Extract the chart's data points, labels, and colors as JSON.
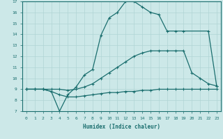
{
  "xlabel": "Humidex (Indice chaleur)",
  "ylabel": "",
  "bg_color": "#cce8e8",
  "grid_color": "#b0d4d4",
  "line_color": "#1a6e6e",
  "xlim": [
    -0.5,
    23.5
  ],
  "ylim": [
    7,
    17
  ],
  "yticks": [
    7,
    8,
    9,
    10,
    11,
    12,
    13,
    14,
    15,
    16,
    17
  ],
  "xticks": [
    0,
    1,
    2,
    3,
    4,
    5,
    6,
    7,
    8,
    9,
    10,
    11,
    12,
    13,
    14,
    15,
    16,
    17,
    18,
    19,
    20,
    21,
    22,
    23
  ],
  "line1_x": [
    0,
    1,
    2,
    3,
    4,
    5,
    6,
    7,
    8,
    9,
    10,
    11,
    12,
    13,
    14,
    15,
    16,
    17,
    18,
    19,
    22,
    23
  ],
  "line1_y": [
    9,
    9,
    9,
    8.8,
    7.0,
    8.5,
    9.2,
    10.3,
    10.8,
    13.9,
    15.5,
    16.0,
    17.0,
    17.0,
    16.5,
    16.0,
    15.8,
    14.3,
    14.3,
    14.3,
    14.3,
    9.3
  ],
  "line2_x": [
    0,
    1,
    2,
    3,
    4,
    5,
    6,
    7,
    8,
    9,
    10,
    11,
    12,
    13,
    14,
    15,
    16,
    17,
    18,
    19,
    20,
    21,
    22,
    23
  ],
  "line2_y": [
    9,
    9,
    9,
    9.0,
    9.0,
    8.9,
    9.0,
    9.2,
    9.5,
    10.0,
    10.5,
    11.0,
    11.5,
    12.0,
    12.3,
    12.5,
    12.5,
    12.5,
    12.5,
    12.5,
    10.5,
    10.0,
    9.5,
    9.3
  ],
  "line3_x": [
    0,
    1,
    2,
    3,
    4,
    5,
    6,
    7,
    8,
    9,
    10,
    11,
    12,
    13,
    14,
    15,
    16,
    17,
    18,
    19,
    20,
    21,
    22,
    23
  ],
  "line3_y": [
    9,
    9,
    9,
    8.8,
    8.5,
    8.3,
    8.3,
    8.4,
    8.5,
    8.6,
    8.7,
    8.7,
    8.8,
    8.8,
    8.9,
    8.9,
    9.0,
    9.0,
    9.0,
    9.0,
    9.0,
    9.0,
    9.0,
    9.0
  ]
}
